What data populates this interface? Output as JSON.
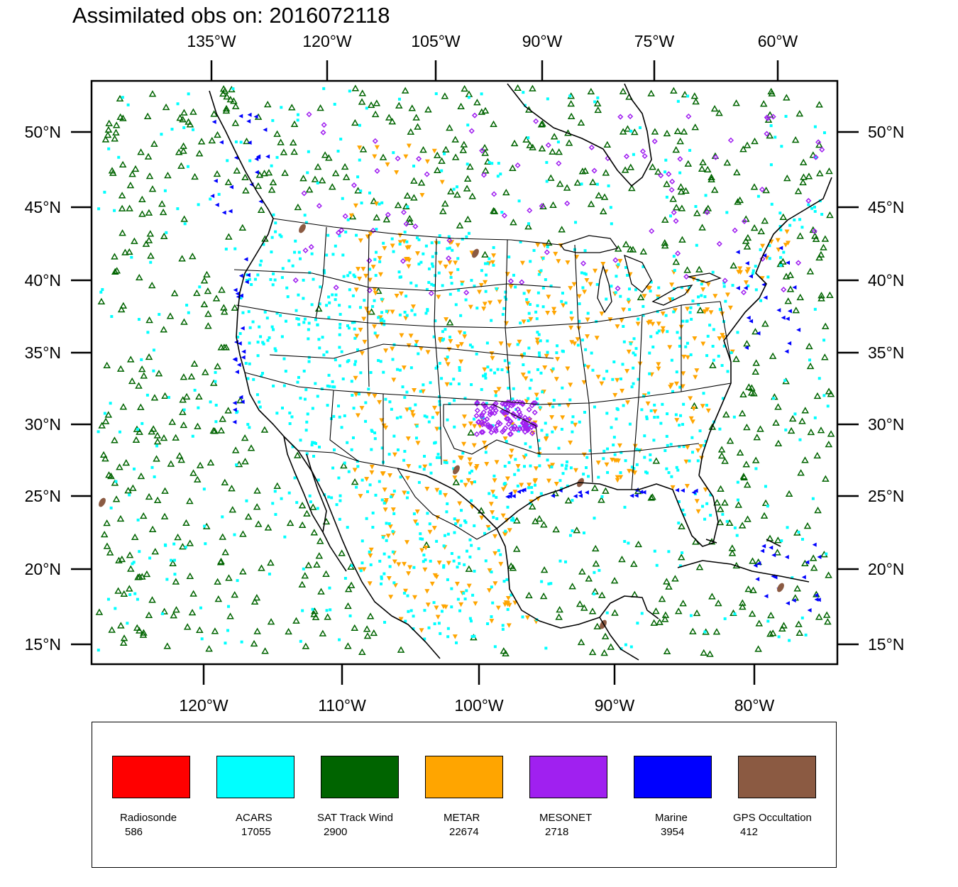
{
  "title": "Assimilated obs on: 2016072118",
  "axes": {
    "top_lon_labels": [
      "135°W",
      "120°W",
      "105°W",
      "90°W",
      "75°W",
      "60°W"
    ],
    "bottom_lon_labels": [
      "120°W",
      "110°W",
      "100°W",
      "90°W",
      "80°W"
    ],
    "lat_labels": [
      "50°N",
      "45°N",
      "40°N",
      "35°N",
      "30°N",
      "25°N",
      "20°N",
      "15°N"
    ]
  },
  "legend": [
    {
      "name": "Radiosonde",
      "count": "586",
      "color": "#ff0000",
      "symbol": "square"
    },
    {
      "name": "ACARS",
      "count": "17055",
      "color": "#00ffff",
      "symbol": "square"
    },
    {
      "name": "SAT Track Wind",
      "count": "2900",
      "color": "#006400",
      "symbol": "triangle-up"
    },
    {
      "name": "METAR",
      "count": "22674",
      "color": "#ffa500",
      "symbol": "triangle-down"
    },
    {
      "name": "MESONET",
      "count": "2718",
      "color": "#a020f0",
      "symbol": "diamond"
    },
    {
      "name": "Marine",
      "count": "3954",
      "color": "#0000ff",
      "symbol": "triangle-left"
    },
    {
      "name": "GPS Occultation",
      "count": "412",
      "color": "#8b5a42",
      "symbol": "ellipse"
    }
  ]
}
